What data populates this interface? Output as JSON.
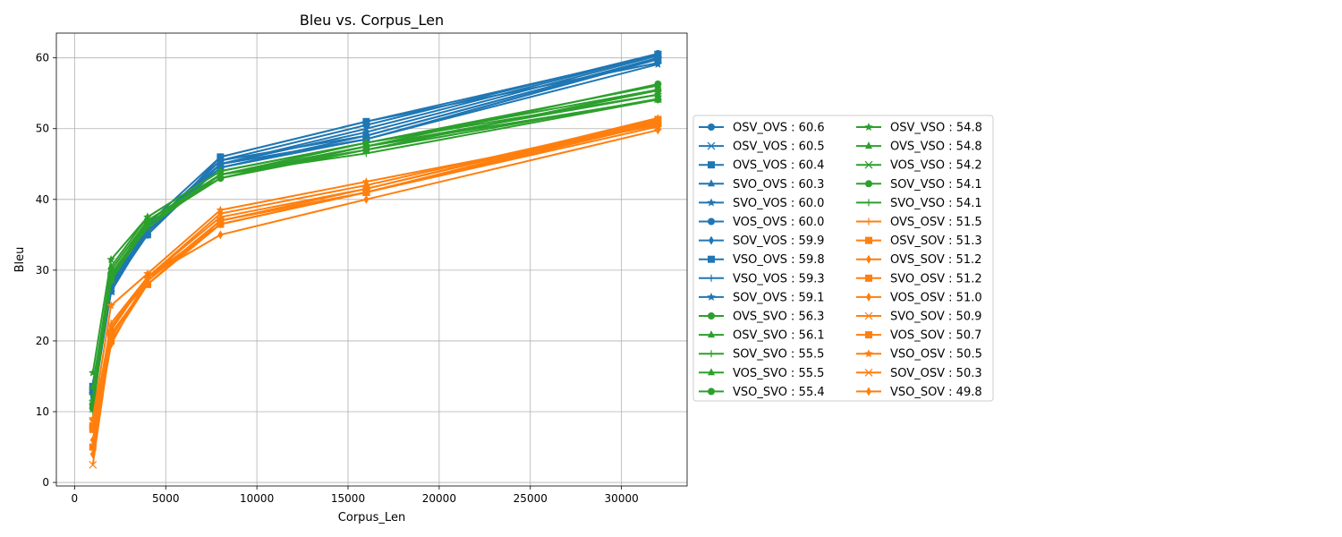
{
  "chart_data": {
    "type": "line",
    "title": "Bleu vs. Corpus_Len",
    "xlabel": "Corpus_Len",
    "ylabel": "Bleu",
    "xlim": [
      -1000,
      33600
    ],
    "ylim": [
      -0.5,
      63.5
    ],
    "xticks": [
      0,
      5000,
      10000,
      15000,
      20000,
      25000,
      30000
    ],
    "yticks": [
      0,
      10,
      20,
      30,
      40,
      50,
      60
    ],
    "grid": true,
    "legend_position": "right, outside plot",
    "x": [
      1000,
      2000,
      4000,
      8000,
      16000,
      32000
    ],
    "colors": {
      "blue": "#1f77b4",
      "green": "#2ca02c",
      "orange": "#ff7f0e"
    },
    "series": [
      {
        "name": "OSV_OVS : 60.6",
        "color": "blue",
        "marker": "o",
        "values": [
          13.0,
          27.5,
          36.0,
          45.5,
          50.5,
          60.6
        ]
      },
      {
        "name": "OSV_VOS : 60.5",
        "color": "blue",
        "marker": "x",
        "values": [
          12.0,
          27.0,
          35.5,
          45.0,
          50.0,
          60.5
        ]
      },
      {
        "name": "OVS_VOS : 60.4",
        "color": "blue",
        "marker": "s",
        "values": [
          13.0,
          28.0,
          35.0,
          46.0,
          51.0,
          60.4
        ]
      },
      {
        "name": "SVO_OVS : 60.3",
        "color": "blue",
        "marker": "^",
        "values": [
          11.5,
          27.0,
          36.0,
          45.0,
          49.5,
          60.3
        ]
      },
      {
        "name": "SVO_VOS : 60.0",
        "color": "blue",
        "marker": "*",
        "values": [
          12.5,
          28.5,
          35.5,
          45.5,
          49.0,
          60.0
        ]
      },
      {
        "name": "VOS_OVS : 60.0",
        "color": "blue",
        "marker": "o",
        "values": [
          11.0,
          27.0,
          35.5,
          44.5,
          49.0,
          60.0
        ]
      },
      {
        "name": "SOV_VOS : 59.9",
        "color": "blue",
        "marker": "d",
        "values": [
          12.0,
          27.5,
          35.0,
          45.0,
          48.5,
          59.9
        ]
      },
      {
        "name": "VSO_OVS : 59.8",
        "color": "blue",
        "marker": "s",
        "values": [
          13.5,
          28.0,
          36.0,
          44.5,
          48.5,
          59.8
        ]
      },
      {
        "name": "VSO_VOS : 59.3",
        "color": "blue",
        "marker": "+",
        "values": [
          14.0,
          28.5,
          36.5,
          46.0,
          51.0,
          59.3
        ]
      },
      {
        "name": "SOV_OVS : 59.1",
        "color": "blue",
        "marker": "*",
        "values": [
          12.5,
          27.0,
          35.5,
          45.0,
          48.5,
          59.1
        ]
      },
      {
        "name": "OVS_SVO : 56.3",
        "color": "green",
        "marker": "o",
        "values": [
          10.5,
          29.0,
          37.0,
          43.0,
          47.5,
          56.3
        ]
      },
      {
        "name": "OSV_SVO : 56.1",
        "color": "green",
        "marker": "^",
        "values": [
          11.0,
          30.0,
          37.0,
          43.5,
          48.0,
          56.1
        ]
      },
      {
        "name": "SOV_SVO : 55.5",
        "color": "green",
        "marker": "+",
        "values": [
          10.0,
          29.5,
          36.5,
          43.5,
          47.0,
          55.5
        ]
      },
      {
        "name": "VOS_SVO : 55.5",
        "color": "green",
        "marker": "^",
        "values": [
          11.5,
          30.5,
          37.5,
          44.0,
          48.0,
          55.5
        ]
      },
      {
        "name": "VSO_SVO : 55.4",
        "color": "green",
        "marker": "o",
        "values": [
          11.0,
          29.0,
          36.5,
          43.0,
          47.0,
          55.4
        ]
      },
      {
        "name": "OSV_VSO : 54.8",
        "color": "green",
        "marker": "*",
        "values": [
          15.5,
          31.5,
          37.5,
          44.0,
          48.0,
          54.8
        ]
      },
      {
        "name": "OVS_VSO : 54.8",
        "color": "green",
        "marker": "^",
        "values": [
          13.5,
          30.0,
          37.0,
          43.5,
          47.5,
          54.8
        ]
      },
      {
        "name": "VOS_VSO : 54.2",
        "color": "green",
        "marker": "x",
        "values": [
          12.0,
          29.0,
          36.0,
          43.5,
          47.0,
          54.2
        ]
      },
      {
        "name": "SOV_VSO : 54.1",
        "color": "green",
        "marker": "o",
        "values": [
          10.5,
          28.5,
          36.5,
          43.0,
          47.5,
          54.1
        ]
      },
      {
        "name": "SVO_VSO : 54.1",
        "color": "green",
        "marker": "+",
        "values": [
          11.0,
          29.0,
          37.0,
          43.5,
          46.5,
          54.1
        ]
      },
      {
        "name": "OVS_OSV : 51.5",
        "color": "orange",
        "marker": "+",
        "values": [
          7.5,
          22.5,
          29.0,
          37.5,
          41.5,
          51.5
        ]
      },
      {
        "name": "OSV_SOV : 51.3",
        "color": "orange",
        "marker": "s",
        "values": [
          5.0,
          20.0,
          28.0,
          36.5,
          41.0,
          51.3
        ]
      },
      {
        "name": "OVS_SOV : 51.2",
        "color": "orange",
        "marker": "d",
        "values": [
          4.0,
          22.0,
          29.0,
          38.0,
          42.0,
          51.2
        ]
      },
      {
        "name": "SVO_OSV : 51.2",
        "color": "orange",
        "marker": "s",
        "values": [
          8.0,
          21.0,
          28.0,
          37.0,
          41.5,
          51.2
        ]
      },
      {
        "name": "VOS_OSV : 51.0",
        "color": "orange",
        "marker": "d",
        "values": [
          6.0,
          21.5,
          29.0,
          36.5,
          41.0,
          51.0
        ]
      },
      {
        "name": "SVO_SOV : 50.9",
        "color": "orange",
        "marker": "x",
        "values": [
          2.5,
          20.5,
          28.5,
          37.0,
          41.0,
          50.9
        ]
      },
      {
        "name": "VOS_SOV : 50.7",
        "color": "orange",
        "marker": "s",
        "values": [
          7.5,
          21.0,
          28.0,
          36.5,
          41.0,
          50.7
        ]
      },
      {
        "name": "VSO_OSV : 50.5",
        "color": "orange",
        "marker": "*",
        "values": [
          9.0,
          25.0,
          29.5,
          38.5,
          42.5,
          50.5
        ]
      },
      {
        "name": "SOV_OSV : 50.3",
        "color": "orange",
        "marker": "x",
        "values": [
          8.5,
          22.0,
          28.5,
          37.0,
          41.0,
          50.3
        ]
      },
      {
        "name": "VSO_SOV : 49.8",
        "color": "orange",
        "marker": "d",
        "values": [
          5.0,
          19.5,
          29.0,
          35.0,
          40.0,
          49.8
        ]
      }
    ]
  }
}
